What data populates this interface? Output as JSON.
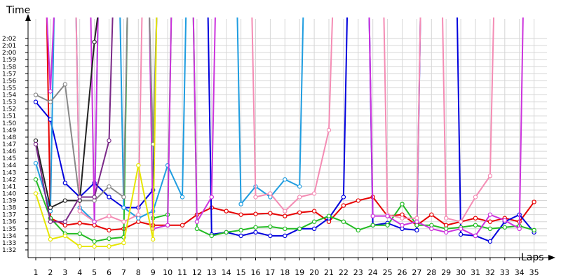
{
  "chart_data": {
    "type": "line",
    "ylabel": "Time",
    "xlabel": "Laps",
    "x": [
      1,
      2,
      3,
      4,
      5,
      6,
      7,
      8,
      9,
      10,
      11,
      12,
      13,
      14,
      15,
      16,
      17,
      18,
      19,
      20,
      21,
      22,
      23,
      24,
      25,
      26,
      27,
      28,
      29,
      30,
      31,
      32,
      33,
      34,
      35
    ],
    "xlim": [
      0.5,
      35
    ],
    "ylim": [
      90,
      133
    ],
    "y_ticks": [
      92,
      93,
      94,
      95,
      96,
      97,
      98,
      99,
      100,
      101,
      102,
      103,
      104,
      105,
      106,
      107,
      108,
      109,
      110,
      111,
      112,
      113,
      114,
      115,
      116,
      117,
      118,
      119,
      120,
      121,
      122
    ],
    "y_tick_labels": [
      "1:32",
      "1:33",
      "1:34",
      "1:35",
      "1:36",
      "1:37",
      "1:38",
      "1:39",
      "1:40",
      "1:41",
      "1:42",
      "1:43",
      "1:44",
      "1:45",
      "1:46",
      "1:47",
      "1:48",
      "1:49",
      "1:50",
      "1:51",
      "1:52",
      "1:53",
      "1:54",
      "1:55",
      "1:56",
      "1:57",
      "1:58",
      "1:59",
      "2:00",
      "2:01",
      "2:02"
    ],
    "grid": true,
    "series": [
      {
        "color": "#e60000",
        "values": [
          null,
          96.5,
          95.5,
          95.8,
          95.5,
          94.8,
          95.0,
          96.0,
          95.5,
          95.5,
          95.5,
          97.0,
          98.0,
          97.5,
          97.0,
          97.1,
          97.2,
          96.8,
          97.3,
          97.5,
          96.0,
          98.3,
          99.0,
          99.5,
          96.8,
          97.0,
          95.5,
          97.0,
          95.5,
          96.0,
          96.5,
          96.0,
          96.5,
          96.0,
          98.8
        ]
      },
      {
        "color": "#0000dd",
        "values": [
          113,
          110.5,
          101.5,
          99.5,
          101.5,
          99.5,
          98.0,
          98.0,
          100.5,
          null,
          null,
          null,
          94.2,
          94.5,
          94.0,
          94.5,
          94.0,
          94.0,
          95.0,
          95.0,
          96.5,
          99.5,
          null,
          95.5,
          95.8,
          95.0,
          94.8,
          null,
          null,
          94.2,
          94.0,
          93.2,
          96.0,
          97.0,
          94.5
        ]
      },
      {
        "color": "#22bb22",
        "values": [
          102,
          96.5,
          94.3,
          94.3,
          93.2,
          93.6,
          93.8,
          null,
          96.5,
          97.0,
          null,
          95.0,
          94.0,
          94.5,
          94.8,
          95.2,
          95.3,
          95.0,
          95.0,
          96.0,
          96.8,
          96.0,
          94.8,
          95.5,
          95.5,
          98.5,
          95.5,
          95.5,
          95.0,
          95.2,
          95.5,
          95.0,
          95.2,
          95.4,
          94.8
        ]
      },
      {
        "color": "#1f9de0",
        "values": [
          104.3,
          97.5,
          null,
          98.0,
          96.0,
          null,
          98.0,
          96.5,
          97.5,
          104.0,
          99.5,
          null,
          null,
          null,
          98.5,
          101.0,
          99.5,
          102.0,
          101.0,
          null,
          null,
          null,
          null,
          null,
          null,
          null,
          null,
          null,
          null,
          null,
          null,
          null,
          null,
          null,
          null
        ]
      },
      {
        "color": "#f48cb4",
        "values": [
          null,
          null,
          null,
          97.5,
          96.0,
          96.8,
          96.0,
          97.0,
          null,
          null,
          null,
          null,
          null,
          null,
          null,
          99.5,
          100.0,
          97.5,
          99.5,
          100.0,
          109.0,
          null,
          null,
          null,
          97.0,
          96.5,
          96.5,
          null,
          96.5,
          96.0,
          99.5,
          102.5,
          null,
          null,
          null
        ]
      },
      {
        "color": "#cc33dd",
        "values": [
          null,
          114.5,
          null,
          null,
          96.0,
          null,
          null,
          null,
          95.0,
          95.5,
          null,
          96.0,
          99.5,
          null,
          null,
          null,
          null,
          null,
          null,
          null,
          null,
          null,
          null,
          96.8,
          96.8,
          95.5,
          96.0,
          95.0,
          94.5,
          95.0,
          94.0,
          97.0,
          96.2,
          95.0,
          null
        ]
      },
      {
        "color": "#888888",
        "values": [
          114,
          113,
          115.5,
          99.0,
          99.0,
          101.0,
          99.5,
          null,
          107.0,
          null,
          null,
          null,
          null,
          null,
          null,
          null,
          null,
          null,
          null,
          null,
          null,
          null,
          null,
          null,
          null,
          null,
          null,
          null,
          null,
          null,
          null,
          null,
          null,
          null,
          null
        ]
      },
      {
        "color": "#222222",
        "values": [
          107.5,
          98.0,
          99.0,
          99.0,
          121.5,
          null,
          null,
          null,
          null,
          null,
          null,
          null,
          null,
          null,
          null,
          null,
          null,
          null,
          null,
          null,
          null,
          null,
          null,
          null,
          null,
          null,
          null,
          null,
          null,
          null,
          null,
          null,
          null,
          null,
          null
        ]
      },
      {
        "color": "#7b2a88",
        "values": [
          107.0,
          96.0,
          96.0,
          99.5,
          99.5,
          107.5,
          null,
          null,
          null,
          null,
          null,
          null,
          null,
          null,
          null,
          null,
          null,
          null,
          null,
          null,
          null,
          null,
          null,
          null,
          null,
          null,
          null,
          null,
          null,
          null,
          null,
          null,
          null,
          null,
          null
        ]
      },
      {
        "color": "#e6e600",
        "values": [
          100,
          93.5,
          94.0,
          92.5,
          92.5,
          92.5,
          93.0,
          104.0,
          93.5,
          null,
          null,
          null,
          null,
          null,
          null,
          null,
          null,
          null,
          null,
          null,
          null,
          null,
          null,
          null,
          null,
          null,
          null,
          null,
          null,
          null,
          null,
          null,
          null,
          null,
          null
        ]
      }
    ]
  }
}
